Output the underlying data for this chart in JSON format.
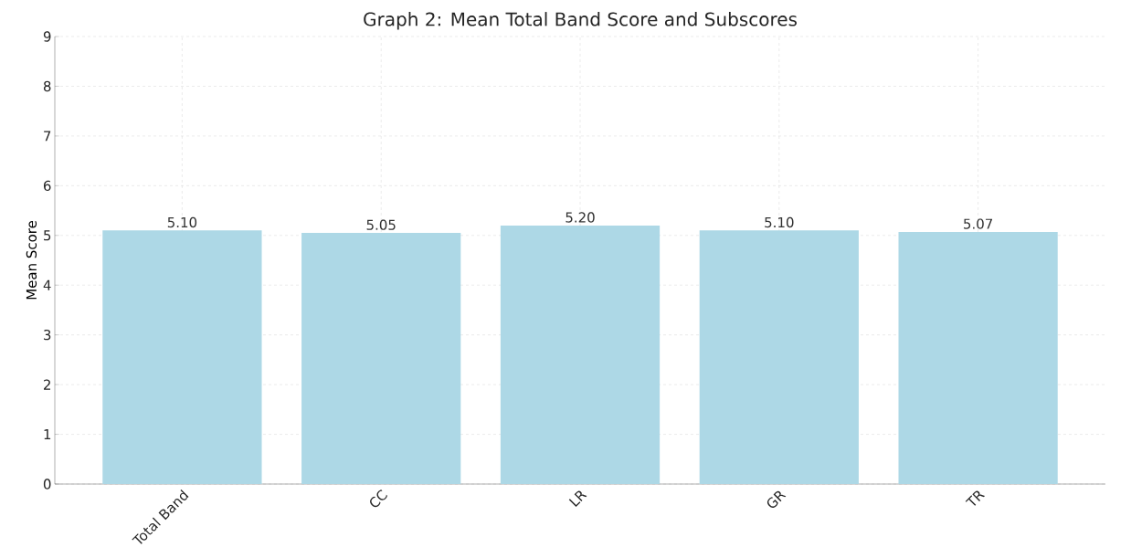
{
  "chart_data": {
    "type": "bar",
    "title": "Graph 2: Mean Total Band Score and Subscores",
    "ylabel": "Mean Score",
    "categories": [
      "Total Band",
      "CC",
      "LR",
      "GR",
      "TR"
    ],
    "values": [
      5.1,
      5.05,
      5.2,
      5.1,
      5.07
    ],
    "value_labels": [
      "5.10",
      "5.05",
      "5.20",
      "5.10",
      "5.07"
    ],
    "color": "#add8e6",
    "ylim": [
      0,
      9
    ],
    "yticks": [
      0,
      1,
      2,
      3,
      4,
      5,
      6,
      7,
      8,
      9
    ],
    "grid": true
  }
}
